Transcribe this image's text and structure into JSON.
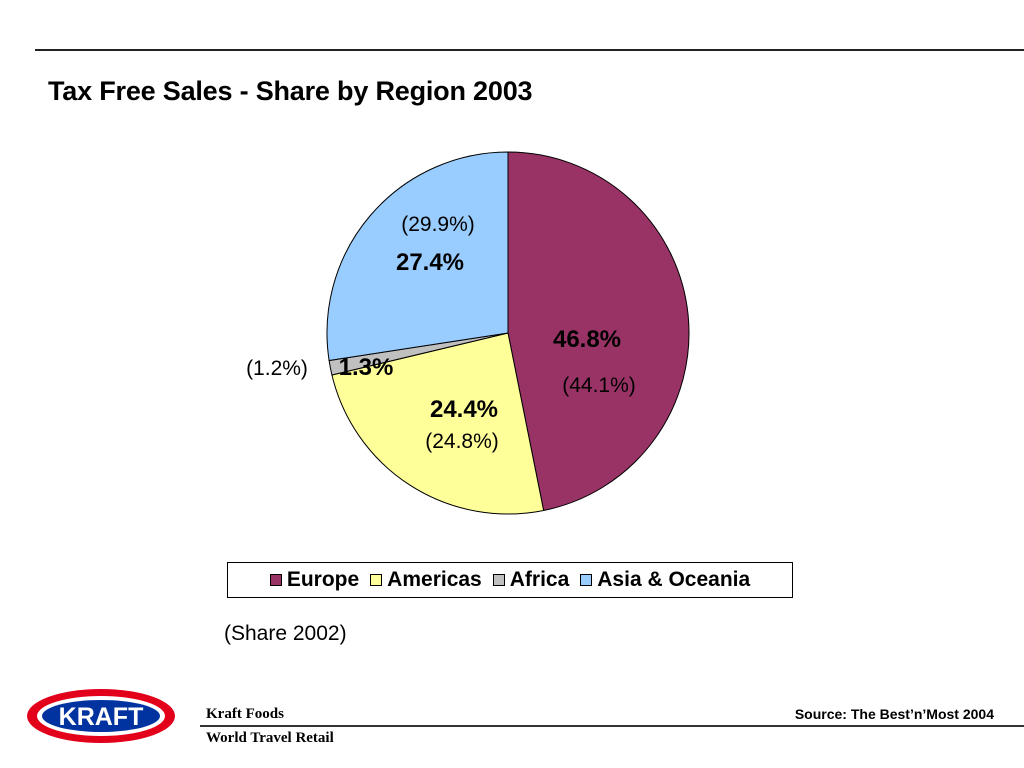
{
  "chart_data": {
    "type": "pie",
    "title": "Tax Free Sales - Share by Region 2003",
    "categories": [
      "Europe",
      "Americas",
      "Africa",
      "Asia & Oceania"
    ],
    "values": [
      46.8,
      24.4,
      1.3,
      27.4
    ],
    "value_labels": [
      "46.8%",
      "24.4%",
      "1.3%",
      "27.4%"
    ],
    "previous_values": [
      44.1,
      24.8,
      1.2,
      29.9
    ],
    "previous_labels": [
      "(44.1%)",
      "(24.8%)",
      "(1.2%)",
      "(29.9%)"
    ],
    "colors": [
      "#993366",
      "#FFFF99",
      "#C0C0C0",
      "#99CCFF"
    ],
    "start_angle_deg": 0,
    "direction": "clockwise",
    "legend_position": "bottom",
    "note": "(Share 2002)"
  },
  "footer": {
    "logo_text": "KRAFT",
    "company": "Kraft Foods",
    "division": "World Travel Retail",
    "source": "Source: The Best’n’Most 2004"
  }
}
